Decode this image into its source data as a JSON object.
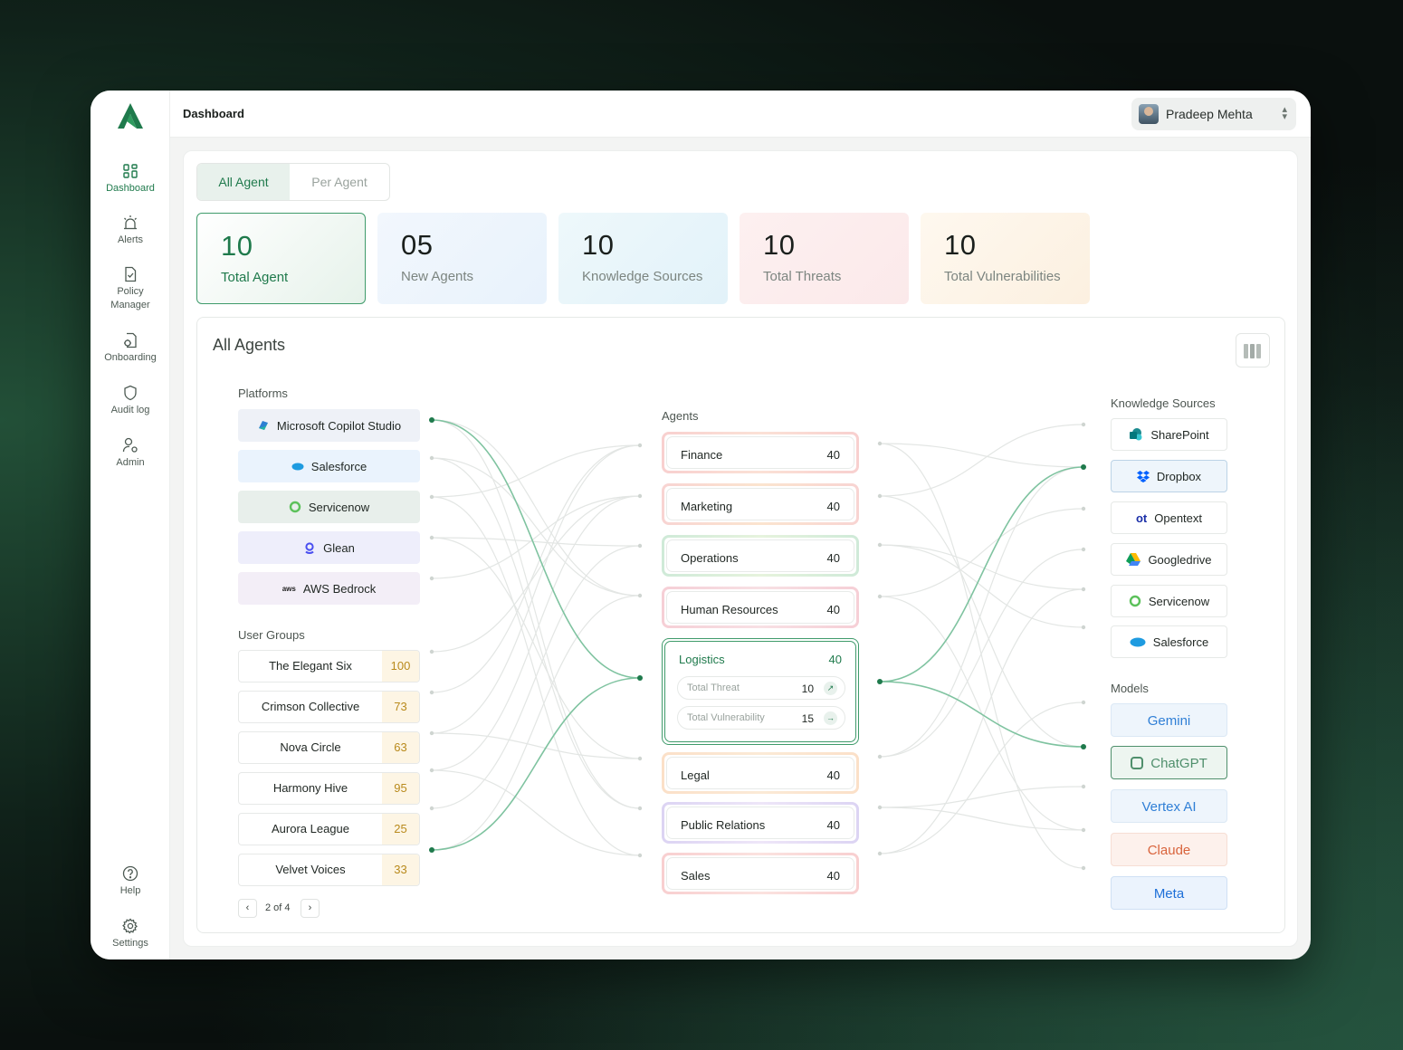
{
  "nav": {
    "items": [
      {
        "label": "Dashboard",
        "icon": "grid-icon",
        "active": true
      },
      {
        "label": "Alerts",
        "icon": "siren-icon"
      },
      {
        "label": "Policy Manager",
        "icon": "document-check-icon"
      },
      {
        "label": "Onboarding",
        "icon": "folder-settings-icon"
      },
      {
        "label": "Audit log",
        "icon": "shield-icon"
      },
      {
        "label": "Admin",
        "icon": "user-gear-icon"
      }
    ],
    "help": "Help",
    "settings": "Settings"
  },
  "topbar": {
    "title": "Dashboard",
    "user_name": "Pradeep Mehta"
  },
  "tabs": {
    "active": "All Agent",
    "inactive": "Per Agent"
  },
  "stats": [
    {
      "value": "10",
      "label": "Total Agent"
    },
    {
      "value": "05",
      "label": "New Agents"
    },
    {
      "value": "10",
      "label": "Knowledge Sources"
    },
    {
      "value": "10",
      "label": "Total Threats"
    },
    {
      "value": "10",
      "label": "Total Vulnerabilities"
    }
  ],
  "panel": {
    "title": "All Agents",
    "platforms_label": "Platforms",
    "platforms": [
      {
        "name": "Microsoft Copilot Studio",
        "icon": "copilot-icon"
      },
      {
        "name": "Salesforce",
        "icon": "salesforce-icon"
      },
      {
        "name": "Servicenow",
        "icon": "servicenow-icon"
      },
      {
        "name": "Glean",
        "icon": "glean-icon"
      },
      {
        "name": "AWS Bedrock",
        "icon": "aws-icon",
        "icon_text": "aws"
      }
    ],
    "user_groups_label": "User Groups",
    "user_groups": [
      {
        "name": "The Elegant Six",
        "count": "100"
      },
      {
        "name": "Crimson Collective",
        "count": "73"
      },
      {
        "name": "Nova Circle",
        "count": "63"
      },
      {
        "name": "Harmony Hive",
        "count": "95"
      },
      {
        "name": "Aurora League",
        "count": "25"
      },
      {
        "name": "Velvet Voices",
        "count": "33"
      }
    ],
    "pager": {
      "text": "2 of 4",
      "prev": "‹",
      "next": "›"
    },
    "agents_label": "Agents",
    "agents": [
      {
        "name": "Finance",
        "value": "40"
      },
      {
        "name": "Marketing",
        "value": "40"
      },
      {
        "name": "Operations",
        "value": "40"
      },
      {
        "name": "Human Resources",
        "value": "40"
      },
      {
        "name": "Logistics",
        "value": "40"
      },
      {
        "name": "Legal",
        "value": "40"
      },
      {
        "name": "Public Relations",
        "value": "40"
      },
      {
        "name": "Sales",
        "value": "40"
      }
    ],
    "logistics_detail": {
      "threat_label": "Total Threat",
      "threat_value": "10",
      "threat_arrow": "↗",
      "vuln_label": "Total Vulnerability",
      "vuln_value": "15",
      "vuln_arrow": "→"
    },
    "knowledge_label": "Knowledge Sources",
    "knowledge_sources": [
      {
        "name": "SharePoint",
        "icon": "sharepoint-icon"
      },
      {
        "name": "Dropbox",
        "icon": "dropbox-icon",
        "selected": true
      },
      {
        "name": "Opentext",
        "icon": "opentext-icon",
        "icon_text": "ot"
      },
      {
        "name": "Googledrive",
        "icon": "googledrive-icon"
      },
      {
        "name": "Servicenow",
        "icon": "servicenow-icon"
      },
      {
        "name": "Salesforce",
        "icon": "salesforce-icon"
      }
    ],
    "models_label": "Models",
    "models": [
      {
        "name": "Gemini",
        "color": "#2f7fd6"
      },
      {
        "name": "ChatGPT",
        "color": "#4f8f6c",
        "selected": true
      },
      {
        "name": "Vertex AI",
        "color": "#2f7fd6"
      },
      {
        "name": "Claude",
        "color": "#d9643c"
      },
      {
        "name": "Meta",
        "color": "#1d6fd8"
      }
    ]
  },
  "colors": {
    "brand": "#1f7a4c",
    "accent_line": "#7fc3a0"
  }
}
